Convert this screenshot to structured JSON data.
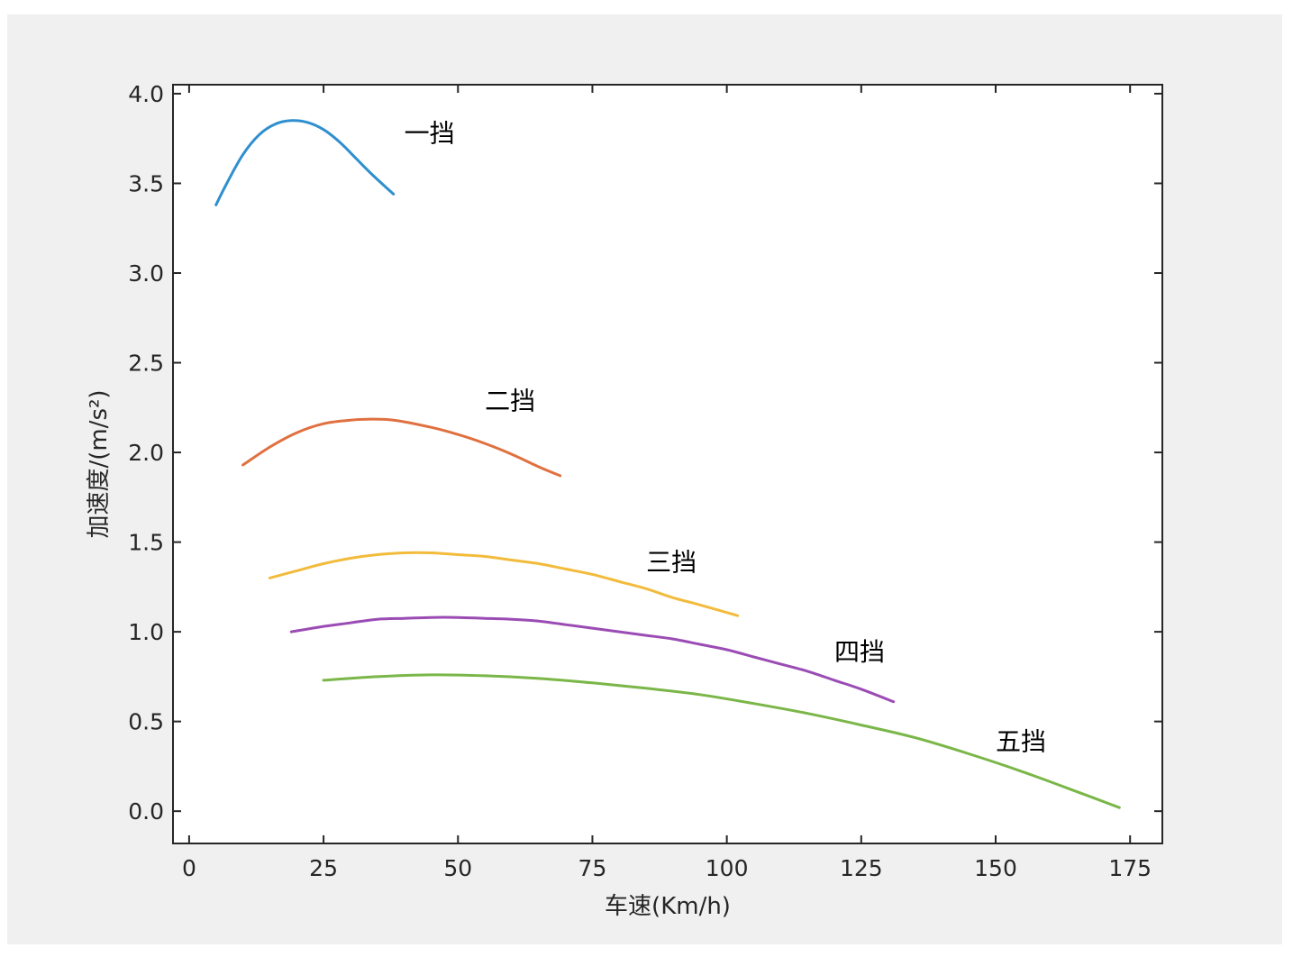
{
  "chart_data": {
    "type": "line",
    "xlabel": "车速(Km/h)",
    "ylabel": "加速度/(m/s²)",
    "xlim": [
      -3,
      181
    ],
    "ylim": [
      -0.18,
      4.05
    ],
    "xticks": [
      0,
      25,
      50,
      75,
      100,
      125,
      150,
      175
    ],
    "yticks": [
      0.0,
      0.5,
      1.0,
      1.5,
      2.0,
      2.5,
      3.0,
      3.5,
      4.0
    ],
    "xtick_labels": [
      "0",
      "25",
      "50",
      "75",
      "100",
      "125",
      "150",
      "175"
    ],
    "ytick_labels": [
      "0.0",
      "0.5",
      "1.0",
      "1.5",
      "2.0",
      "2.5",
      "3.0",
      "3.5",
      "4.0"
    ],
    "grid": false,
    "series": [
      {
        "name": "一挡",
        "color": "#2f8fcf",
        "x": [
          5,
          7,
          10,
          13,
          16,
          19,
          22,
          25,
          28,
          31,
          34,
          38
        ],
        "y": [
          3.38,
          3.5,
          3.66,
          3.77,
          3.83,
          3.85,
          3.84,
          3.8,
          3.73,
          3.64,
          3.55,
          3.44
        ]
      },
      {
        "name": "二挡",
        "color": "#e0703f",
        "x": [
          10,
          15,
          20,
          25,
          30,
          33,
          38,
          45,
          50,
          55,
          60,
          65,
          69
        ],
        "y": [
          1.93,
          2.03,
          2.11,
          2.16,
          2.18,
          2.185,
          2.18,
          2.14,
          2.1,
          2.05,
          1.99,
          1.92,
          1.87
        ]
      },
      {
        "name": "三挡",
        "color": "#f2bb3c",
        "x": [
          15,
          20,
          25,
          30,
          35,
          40,
          45,
          50,
          55,
          60,
          65,
          70,
          75,
          80,
          85,
          90,
          95,
          102
        ],
        "y": [
          1.3,
          1.34,
          1.38,
          1.41,
          1.43,
          1.44,
          1.44,
          1.43,
          1.42,
          1.4,
          1.38,
          1.35,
          1.32,
          1.28,
          1.24,
          1.19,
          1.15,
          1.09
        ]
      },
      {
        "name": "四挡",
        "color": "#9b4cb4",
        "x": [
          19,
          25,
          30,
          35,
          40,
          45,
          50,
          55,
          60,
          65,
          70,
          75,
          80,
          85,
          90,
          95,
          100,
          105,
          110,
          115,
          120,
          125,
          131
        ],
        "y": [
          1.0,
          1.03,
          1.05,
          1.07,
          1.075,
          1.08,
          1.08,
          1.075,
          1.07,
          1.06,
          1.04,
          1.02,
          1.0,
          0.98,
          0.96,
          0.93,
          0.9,
          0.86,
          0.82,
          0.78,
          0.73,
          0.68,
          0.61
        ]
      },
      {
        "name": "五挡",
        "color": "#7ab648",
        "x": [
          25,
          35,
          45,
          55,
          65,
          75,
          85,
          95,
          105,
          115,
          125,
          135,
          145,
          155,
          165,
          173
        ],
        "y": [
          0.73,
          0.75,
          0.76,
          0.755,
          0.74,
          0.715,
          0.685,
          0.65,
          0.6,
          0.545,
          0.48,
          0.41,
          0.32,
          0.22,
          0.11,
          0.02
        ]
      }
    ],
    "annotations": [
      {
        "text": "一挡",
        "x": 40,
        "y": 3.73
      },
      {
        "text": "二挡",
        "x": 55,
        "y": 2.24
      },
      {
        "text": "三挡",
        "x": 85,
        "y": 1.34
      },
      {
        "text": "四挡",
        "x": 120,
        "y": 0.84
      },
      {
        "text": "五挡",
        "x": 150,
        "y": 0.34
      }
    ]
  }
}
